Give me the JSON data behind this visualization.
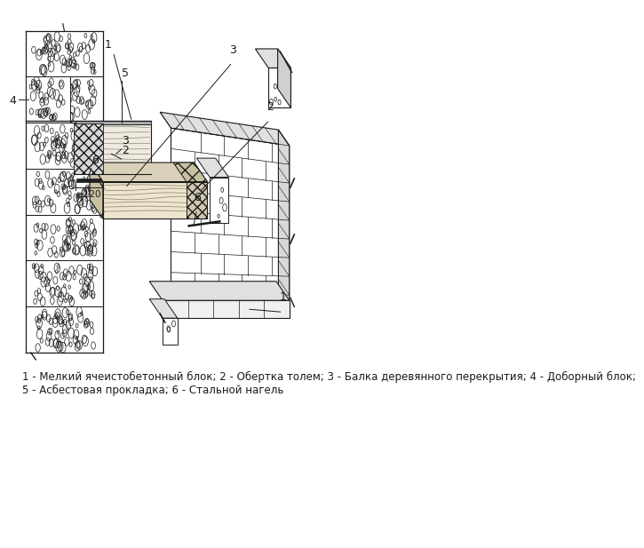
{
  "background_color": "#ffffff",
  "lc": "#1a1a1a",
  "caption_line1": "1 - Мелкий ячеистобетонный блок; 2 - Обертка толем; 3 - Балка деревянного перекрытия; 4 - Доборный блок;",
  "caption_line2": "5 - Асбестовая прокладка; 6 - Стальной нагель",
  "caption_fontsize": 8.5,
  "fig_width": 5.85,
  "fig_height": 6.0
}
